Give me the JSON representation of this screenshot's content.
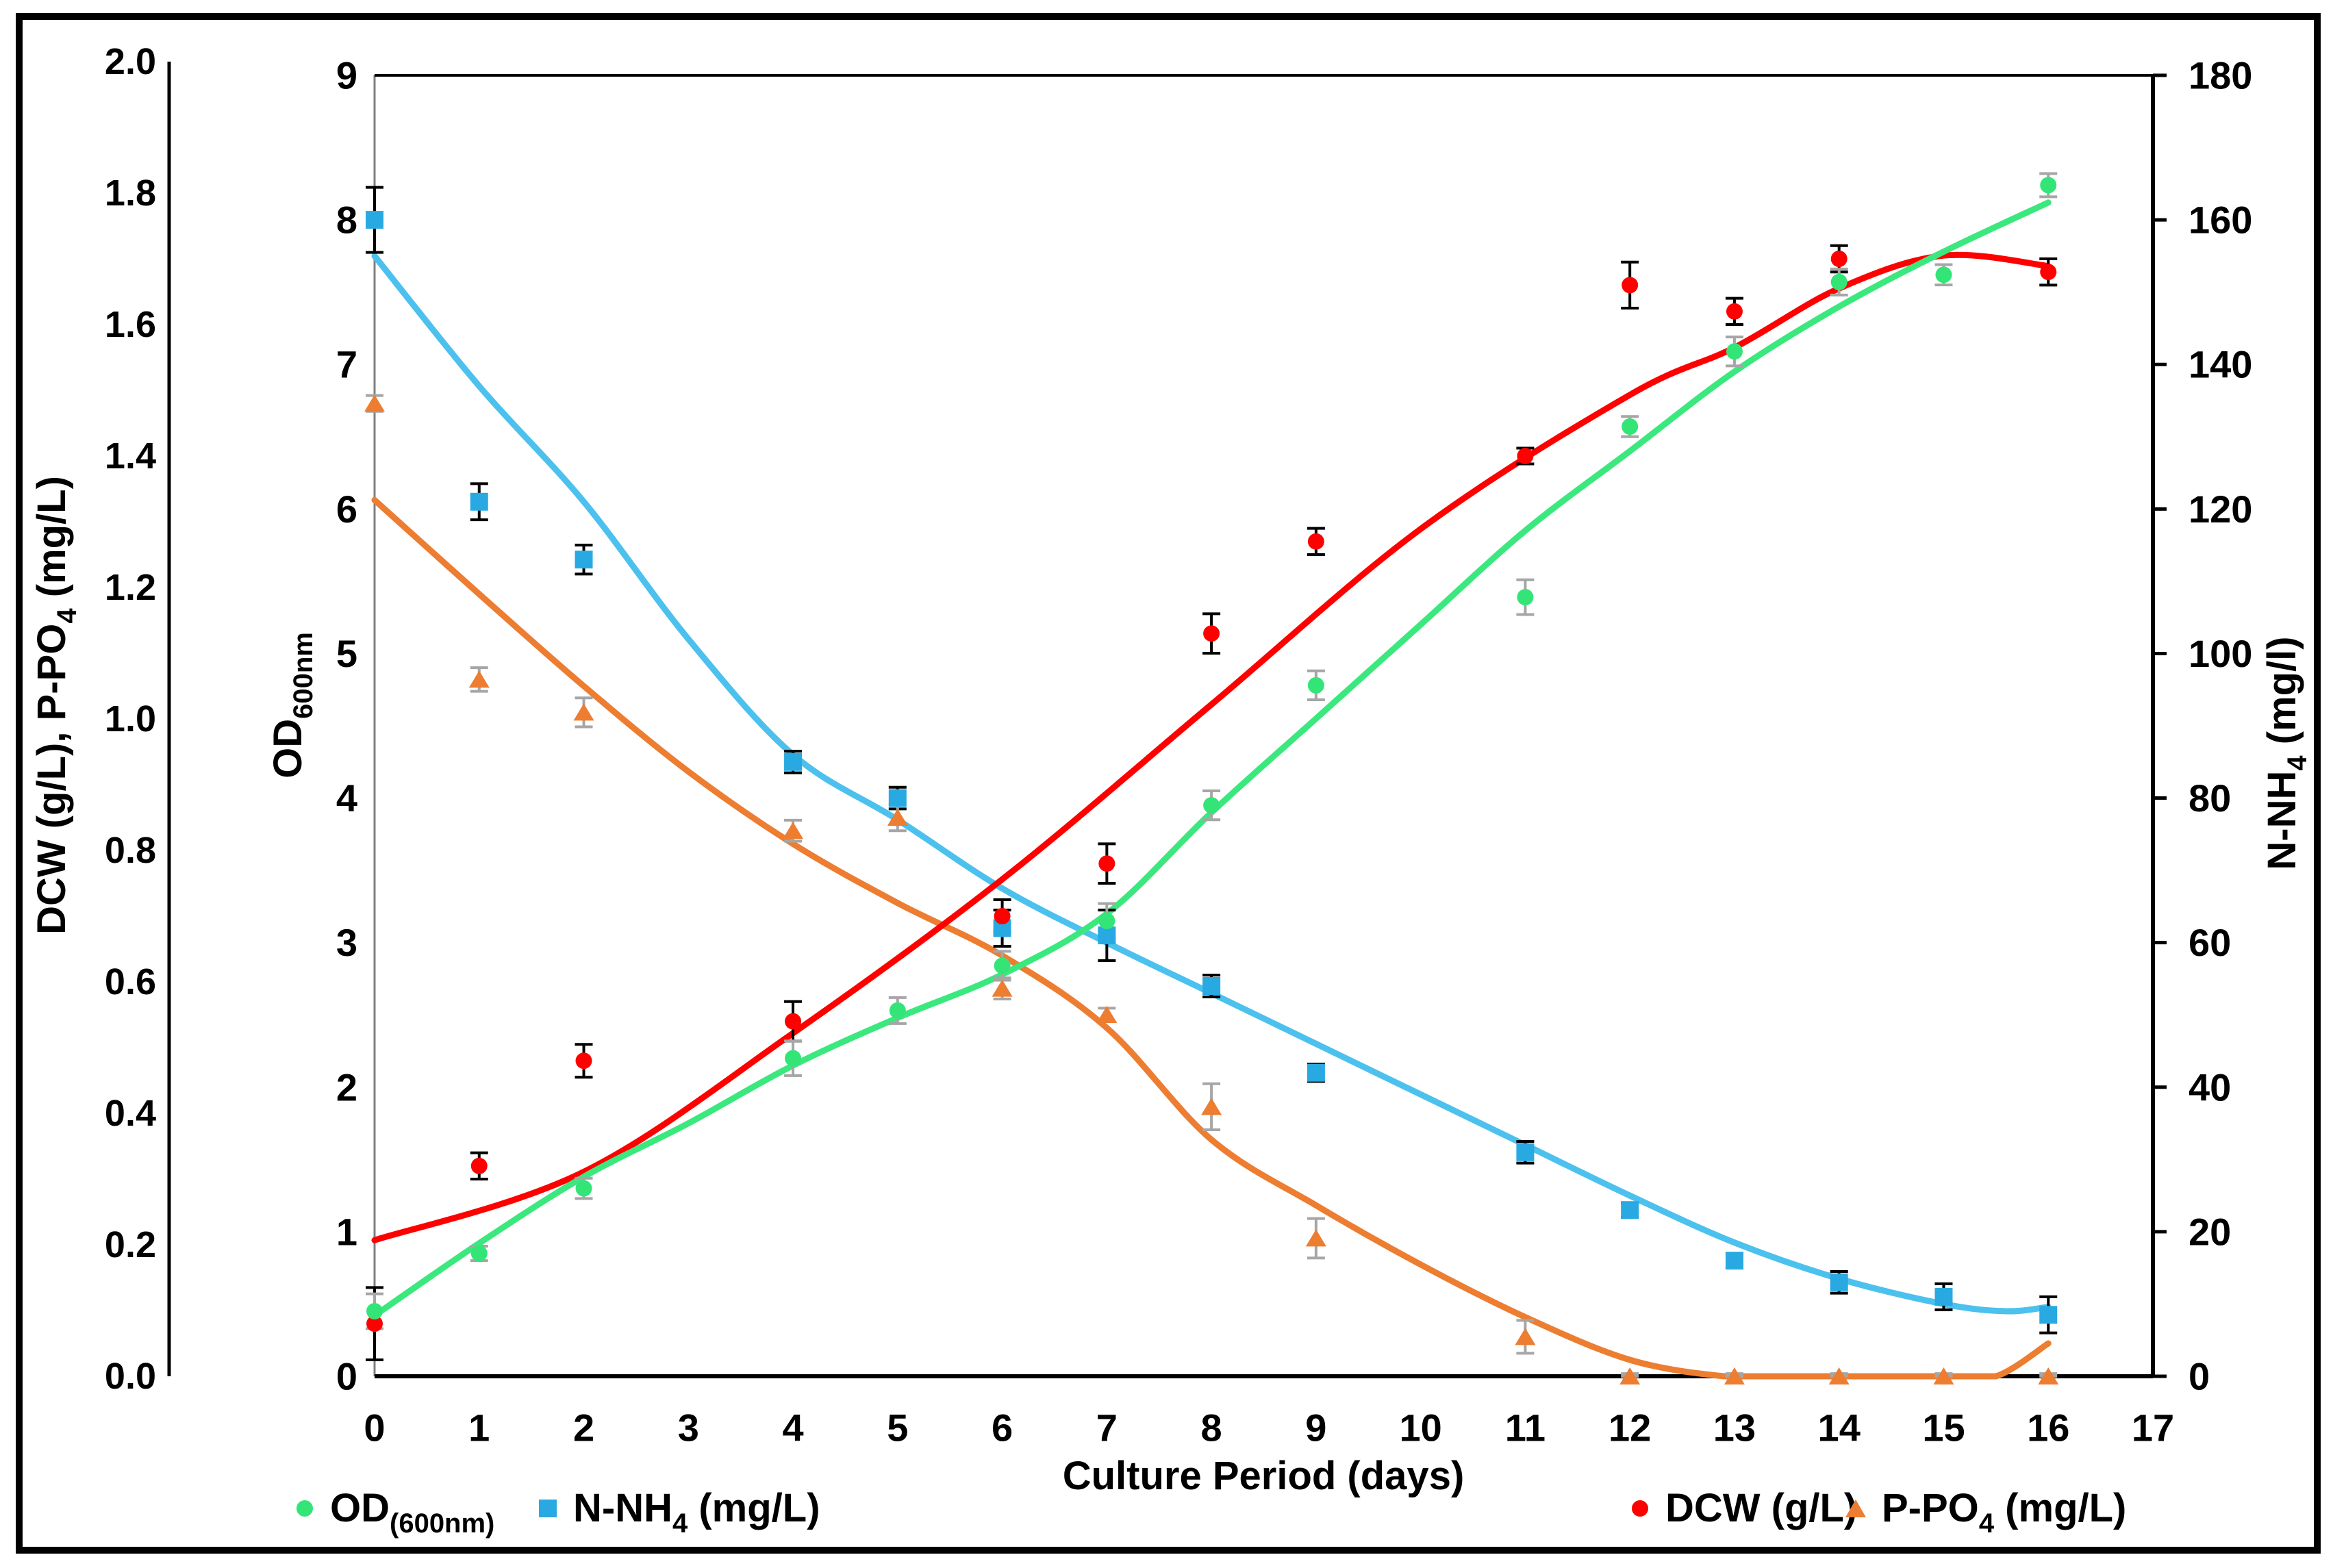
{
  "figure": {
    "border_color": "#000000",
    "background": "#ffffff"
  },
  "chart_data": {
    "type": "scatter",
    "title": "",
    "xlabel": "Culture Period (days)",
    "x_range": [
      0,
      17
    ],
    "x_ticks": [
      "0",
      "1",
      "2",
      "3",
      "4",
      "5",
      "6",
      "7",
      "8",
      "9",
      "10",
      "11",
      "12",
      "13",
      "14",
      "15",
      "16",
      "17"
    ],
    "grid": "off",
    "axes": {
      "left_outer": {
        "title_pre": "DCW (g/L), P-PO",
        "title_sub": "4",
        "title_post": " (mg/L)",
        "range": [
          0.0,
          2.0
        ],
        "ticks": [
          "2.0",
          "1.8",
          "1.6",
          "1.4",
          "1.2",
          "1.0",
          "0.8",
          "0.6",
          "0.4",
          "0.2",
          "0.0"
        ]
      },
      "left_inner": {
        "title_pre": "OD",
        "title_sub": "600nm",
        "title_post": "",
        "range": [
          0,
          9
        ],
        "ticks": [
          "9",
          "8",
          "7",
          "6",
          "5",
          "4",
          "3",
          "2",
          "1",
          "0"
        ]
      },
      "right": {
        "title_pre": "N-NH",
        "title_sub": "4",
        "title_post": " (mg/l)",
        "range": [
          0,
          180
        ],
        "ticks": [
          "180",
          "160",
          "140",
          "120",
          "100",
          "80",
          "60",
          "40",
          "20",
          "0"
        ]
      }
    },
    "series": [
      {
        "id": "nnh4",
        "name": "N-NH4 (mg/L)",
        "axis": "right",
        "marker": "square",
        "color": "#29A9E1",
        "line_color": "#4CC1ED",
        "error_color": "#000000",
        "x": [
          0,
          1,
          2,
          4,
          5,
          6,
          7,
          8,
          9,
          11,
          12,
          13,
          14,
          15,
          16
        ],
        "y": [
          160,
          121,
          113,
          85,
          80,
          62,
          61,
          54,
          42,
          31,
          23,
          16,
          13,
          11,
          8.5
        ],
        "err": [
          4.5,
          2.5,
          2.0,
          1.5,
          1.5,
          2.5,
          3.5,
          1.5,
          1.2,
          1.5,
          1.0,
          1.0,
          1.5,
          1.8,
          2.5
        ],
        "trend": [
          [
            0,
            155
          ],
          [
            1,
            137
          ],
          [
            2,
            121
          ],
          [
            3,
            102
          ],
          [
            4,
            86
          ],
          [
            5,
            77
          ],
          [
            6,
            67.5
          ],
          [
            7,
            60
          ],
          [
            8,
            53
          ],
          [
            9,
            46
          ],
          [
            10,
            39
          ],
          [
            11,
            32
          ],
          [
            12,
            25
          ],
          [
            13,
            18.5
          ],
          [
            14,
            13.5
          ],
          [
            15,
            10
          ],
          [
            15.6,
            9.0
          ],
          [
            16,
            9.6
          ]
        ]
      },
      {
        "id": "ppo4",
        "name": "P-PO4 (mg/L)",
        "axis": "left_outer",
        "marker": "triangle",
        "color": "#ED7D31",
        "line_color": "#ED7D31",
        "error_color": "#A6A6A6",
        "x": [
          0,
          1,
          2,
          4,
          5,
          6,
          7,
          8,
          9,
          11,
          12,
          13,
          14,
          15,
          16
        ],
        "y": [
          1.48,
          1.06,
          1.01,
          0.83,
          0.85,
          0.59,
          0.55,
          0.41,
          0.21,
          0.06,
          0.0,
          0.0,
          0.0,
          0.0,
          0.0
        ],
        "err": [
          0.012,
          0.018,
          0.022,
          0.016,
          0.02,
          0.016,
          0.01,
          0.035,
          0.03,
          0.025,
          0.004,
          0.004,
          0.004,
          0.004,
          0.004
        ],
        "trend": [
          [
            0,
            1.333
          ],
          [
            1,
            1.19
          ],
          [
            2,
            1.05
          ],
          [
            3,
            0.92
          ],
          [
            4,
            0.81
          ],
          [
            5,
            0.72
          ],
          [
            6,
            0.64
          ],
          [
            7,
            0.53
          ],
          [
            8,
            0.36
          ],
          [
            9,
            0.26
          ],
          [
            10,
            0.17
          ],
          [
            11,
            0.09
          ],
          [
            12,
            0.025
          ],
          [
            12.9,
            0.0
          ],
          [
            13.5,
            0.0
          ],
          [
            14,
            0.0
          ],
          [
            15,
            0.0
          ],
          [
            15.5,
            0.0
          ],
          [
            16,
            0.05
          ]
        ]
      },
      {
        "id": "dcw",
        "name": "DCW (g/L)",
        "axis": "left_outer",
        "marker": "circle",
        "color": "#FF0000",
        "line_color": "#FF0000",
        "error_color": "#000000",
        "x": [
          0,
          1,
          2,
          4,
          6,
          7,
          8,
          9,
          11,
          12,
          13,
          14,
          16
        ],
        "y": [
          0.08,
          0.32,
          0.48,
          0.54,
          0.7,
          0.78,
          1.13,
          1.27,
          1.4,
          1.66,
          1.62,
          1.7,
          1.68
        ],
        "err": [
          0.055,
          0.02,
          0.025,
          0.03,
          0.025,
          0.03,
          0.03,
          0.02,
          0.012,
          0.035,
          0.02,
          0.02,
          0.02
        ],
        "trend": [
          [
            0,
            0.207
          ],
          [
            2,
            0.311
          ],
          [
            4,
            0.522
          ],
          [
            6,
            0.756
          ],
          [
            8,
            1.022
          ],
          [
            10,
            1.289
          ],
          [
            12,
            1.493
          ],
          [
            13,
            1.565
          ],
          [
            14,
            1.655
          ],
          [
            15,
            1.705
          ],
          [
            16,
            1.689
          ]
        ]
      },
      {
        "id": "od",
        "name": "OD(600nm)",
        "axis": "left_inner",
        "marker": "circle",
        "color": "#33E577",
        "line_color": "#3BE87E",
        "error_color": "#A6A6A6",
        "x": [
          0,
          1,
          2,
          4,
          5,
          6,
          7,
          8,
          9,
          11,
          12,
          13,
          14,
          15,
          16
        ],
        "y": [
          0.45,
          0.85,
          1.3,
          2.2,
          2.53,
          2.84,
          3.15,
          3.95,
          4.78,
          5.39,
          6.57,
          7.09,
          7.57,
          7.62,
          8.24
        ],
        "err": [
          0.12,
          0.05,
          0.07,
          0.12,
          0.09,
          0.1,
          0.12,
          0.1,
          0.1,
          0.12,
          0.07,
          0.1,
          0.09,
          0.07,
          0.08
        ],
        "trend": [
          [
            0,
            0.42
          ],
          [
            1,
            0.92
          ],
          [
            2,
            1.38
          ],
          [
            3,
            1.75
          ],
          [
            4,
            2.15
          ],
          [
            5,
            2.48
          ],
          [
            6,
            2.78
          ],
          [
            7,
            3.2
          ],
          [
            8,
            3.9
          ],
          [
            9,
            4.55
          ],
          [
            10,
            5.2
          ],
          [
            11,
            5.85
          ],
          [
            12,
            6.4
          ],
          [
            13,
            6.95
          ],
          [
            14,
            7.4
          ],
          [
            15,
            7.78
          ],
          [
            16,
            8.12
          ]
        ]
      }
    ],
    "legend": [
      {
        "id": "od",
        "marker": "circle",
        "color": "#33E577",
        "pre": "OD",
        "sub": "(600nm)",
        "post": ""
      },
      {
        "id": "nnh4",
        "marker": "square",
        "color": "#29A9E1",
        "pre": "N-NH",
        "sub": "4",
        "post": " (mg/L)"
      },
      {
        "id": "dcw",
        "marker": "circle",
        "color": "#FF0000",
        "pre": "DCW (g/L)",
        "sub": "",
        "post": ""
      },
      {
        "id": "ppo4",
        "marker": "triangle",
        "color": "#ED7D31",
        "pre": "P-PO",
        "sub": "4",
        "post": " (mg/L)"
      }
    ]
  }
}
